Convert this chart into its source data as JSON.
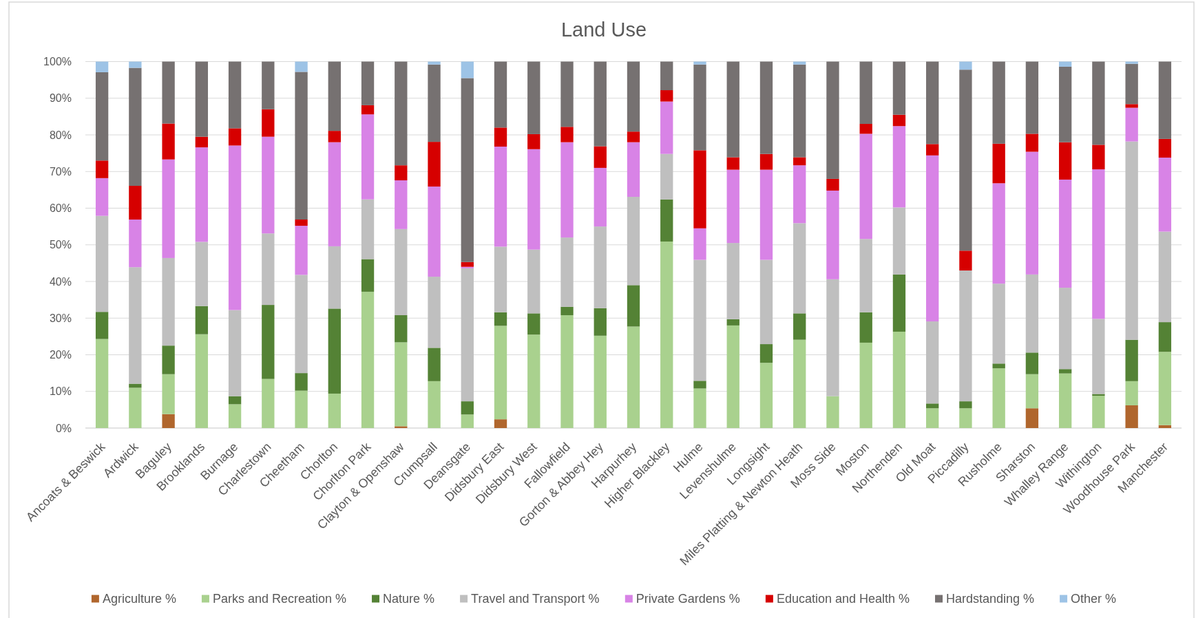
{
  "chart_data": {
    "type": "bar",
    "stacked": true,
    "title": "Land Use",
    "categories": [
      "Ancoats & Beswick",
      "Ardwick",
      "Baguley",
      "Brooklands",
      "Burnage",
      "Charlestown",
      "Cheetham",
      "Chorlton",
      "Chorlton Park",
      "Clayton & Openshaw",
      "Crumpsall",
      "Deansgate",
      "Didsbury East",
      "Didsbury West",
      "Fallowfield",
      "Gorton & Abbey Hey",
      "Harpurhey",
      "Higher Blackley",
      "Hulme",
      "Levenshulme",
      "Longsight",
      "Miles Platting & Newton Heath",
      "Moss Side",
      "Moston",
      "Northenden",
      "Old Moat",
      "Piccadilly",
      "Rusholme",
      "Sharston",
      "Whalley Range",
      "Withington",
      "Woodhouse Park",
      "Manchester"
    ],
    "series": [
      {
        "name": "Agriculture %",
        "color": "#b0662d",
        "values": [
          0,
          0,
          3.8,
          0,
          0,
          0,
          0,
          0,
          0,
          0.5,
          0,
          0,
          2.4,
          0,
          0,
          0,
          0,
          0,
          0,
          0,
          0,
          0,
          0,
          0,
          0,
          0,
          0,
          0,
          5.4,
          0,
          0,
          6.2,
          0.8
        ]
      },
      {
        "name": "Parks and Recreation %",
        "color": "#a9d18e",
        "values": [
          24.3,
          11.0,
          10.9,
          25.6,
          6.5,
          13.4,
          10.2,
          9.4,
          37.2,
          22.9,
          12.8,
          3.7,
          25.5,
          25.5,
          30.8,
          25.2,
          27.7,
          50.9,
          10.8,
          28.0,
          17.8,
          24.1,
          8.7,
          23.3,
          26.3,
          5.4,
          5.4,
          16.3,
          9.3,
          14.9,
          8.8,
          6.6,
          20.0
        ]
      },
      {
        "name": "Nature %",
        "color": "#548235",
        "values": [
          7.4,
          1.1,
          7.8,
          7.7,
          2.2,
          20.2,
          4.8,
          23.2,
          8.9,
          7.4,
          9.1,
          3.6,
          3.7,
          5.8,
          2.3,
          7.5,
          11.3,
          11.5,
          2.1,
          1.7,
          5.1,
          7.2,
          0,
          8.3,
          15.6,
          1.3,
          1.9,
          1.3,
          5.9,
          1.2,
          0.5,
          11.3,
          8.1
        ]
      },
      {
        "name": "Travel and Transport %",
        "color": "#bfbfbf",
        "values": [
          26.2,
          31.8,
          23.9,
          17.5,
          23.5,
          19.5,
          26.8,
          17.0,
          16.3,
          23.5,
          19.4,
          36.3,
          17.9,
          17.4,
          18.9,
          22.3,
          24.1,
          12.4,
          33.0,
          20.8,
          23.0,
          24.6,
          31.9,
          20.0,
          18.3,
          22.4,
          35.7,
          21.8,
          21.3,
          22.2,
          20.5,
          54.1,
          24.7
        ]
      },
      {
        "name": "Private Gardens %",
        "color": "#d883e6",
        "values": [
          10.3,
          13.0,
          26.9,
          25.8,
          44.9,
          26.4,
          13.4,
          28.4,
          23.2,
          13.3,
          24.6,
          0.4,
          27.3,
          27.4,
          26.0,
          16.0,
          14.9,
          14.3,
          8.6,
          20.0,
          24.6,
          15.8,
          24.2,
          28.7,
          22.2,
          45.3,
          0,
          27.4,
          33.5,
          29.5,
          40.8,
          9.2,
          20.2
        ]
      },
      {
        "name": "Education and Health %",
        "color": "#d60000",
        "values": [
          4.8,
          9.2,
          9.8,
          2.9,
          4.7,
          7.5,
          1.7,
          3.1,
          2.5,
          4.1,
          12.2,
          1.3,
          5.2,
          4.1,
          4.2,
          5.9,
          2.9,
          3.1,
          21.3,
          3.4,
          4.3,
          2.2,
          3.2,
          2.7,
          3.1,
          3.1,
          5.4,
          10.8,
          4.9,
          10.2,
          6.7,
          1.0,
          5.1
        ]
      },
      {
        "name": "Hardstanding %",
        "color": "#767171",
        "values": [
          24.1,
          32.2,
          16.9,
          20.5,
          18.2,
          13.0,
          40.3,
          18.9,
          11.9,
          28.3,
          21.1,
          50.2,
          18.0,
          19.8,
          17.8,
          23.1,
          19.1,
          7.8,
          23.4,
          26.1,
          25.2,
          25.3,
          32.0,
          17.0,
          14.5,
          22.5,
          49.4,
          22.4,
          19.7,
          20.6,
          22.7,
          11.0,
          21.1
        ]
      },
      {
        "name": "Other %",
        "color": "#9dc3e6",
        "values": [
          2.9,
          1.7,
          0,
          0,
          0,
          0,
          2.8,
          0,
          0,
          0,
          0.8,
          4.5,
          0,
          0,
          0,
          0,
          0,
          0,
          0.8,
          0,
          0,
          0.8,
          0,
          0,
          0,
          0,
          2.2,
          0,
          0,
          1.4,
          0,
          0.6,
          0
        ]
      }
    ],
    "ylim": [
      0,
      100
    ],
    "yticks": [
      {
        "value": 0,
        "label": "0%"
      },
      {
        "value": 10,
        "label": "10%"
      },
      {
        "value": 20,
        "label": "20%"
      },
      {
        "value": 30,
        "label": "30%"
      },
      {
        "value": 40,
        "label": "40%"
      },
      {
        "value": 50,
        "label": "50%"
      },
      {
        "value": 60,
        "label": "60%"
      },
      {
        "value": 70,
        "label": "70%"
      },
      {
        "value": 80,
        "label": "80%"
      },
      {
        "value": 90,
        "label": "90%"
      },
      {
        "value": 100,
        "label": "100%"
      }
    ],
    "grid": "y",
    "legend": "bottom"
  }
}
